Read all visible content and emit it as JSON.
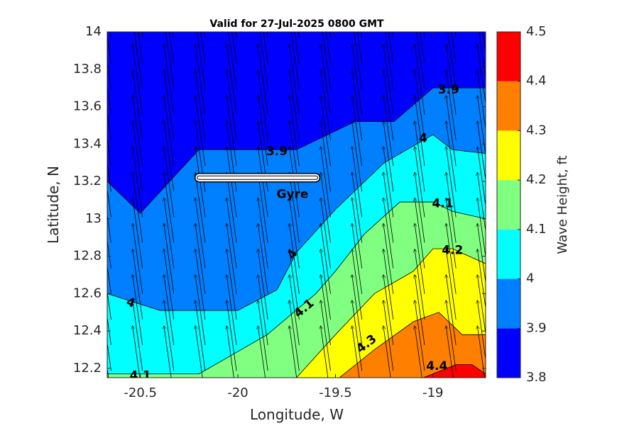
{
  "chart_data": {
    "type": "contourf",
    "title": "Valid for 27-Jul-2025 0800 GMT",
    "xlabel": "Longitude, W",
    "ylabel": "Latitude, N",
    "colorbar_label": "Wave Height, ft",
    "xlim": [
      -20.67,
      -18.73
    ],
    "ylim": [
      12.15,
      14.0
    ],
    "x_ticks": [
      -20.5,
      -20,
      -19.5,
      -19
    ],
    "x_tick_labels": [
      "-20.5",
      "-20",
      "-19.5",
      "-19"
    ],
    "y_ticks": [
      12.2,
      12.4,
      12.6,
      12.8,
      13.0,
      13.2,
      13.4,
      13.6,
      13.8,
      14.0
    ],
    "y_tick_labels": [
      "12.2",
      "12.4",
      "12.6",
      "12.8",
      "13",
      "13.2",
      "13.4",
      "13.6",
      "13.8",
      "14"
    ],
    "levels": [
      3.8,
      3.9,
      4.0,
      4.1,
      4.2,
      4.3,
      4.4,
      4.5
    ],
    "level_labels": [
      "3.8",
      "3.9",
      "4",
      "4.1",
      "4.2",
      "4.3",
      "4.4",
      "4.5"
    ],
    "band_colors": [
      "#0000ff",
      "#0080ff",
      "#00ffff",
      "#80ff80",
      "#ffff00",
      "#ff8000",
      "#ff0000"
    ],
    "contours": [
      {
        "level": 3.9,
        "points": [
          [
            -20.67,
            13.2
          ],
          [
            -20.5,
            13.03
          ],
          [
            -20.2,
            13.37
          ],
          [
            -19.7,
            13.37
          ],
          [
            -19.4,
            13.52
          ],
          [
            -19.2,
            13.52
          ],
          [
            -19.0,
            13.7
          ],
          [
            -18.73,
            13.7
          ]
        ]
      },
      {
        "level": 4.0,
        "points": [
          [
            -20.67,
            12.6
          ],
          [
            -20.4,
            12.51
          ],
          [
            -20.0,
            12.51
          ],
          [
            -19.8,
            12.62
          ],
          [
            -19.7,
            12.82
          ],
          [
            -19.5,
            13.05
          ],
          [
            -19.25,
            13.3
          ],
          [
            -19.0,
            13.45
          ],
          [
            -18.9,
            13.37
          ],
          [
            -18.73,
            13.35
          ]
        ]
      },
      {
        "level": 4.1,
        "points": [
          [
            -20.67,
            12.17
          ],
          [
            -20.2,
            12.17
          ],
          [
            -19.85,
            12.38
          ],
          [
            -19.6,
            12.6
          ],
          [
            -19.5,
            12.72
          ],
          [
            -19.35,
            12.92
          ],
          [
            -19.17,
            13.09
          ],
          [
            -19.0,
            13.09
          ],
          [
            -18.9,
            13.04
          ],
          [
            -18.73,
            13.0
          ]
        ]
      },
      {
        "level": 4.2,
        "points": [
          [
            -19.7,
            12.15
          ],
          [
            -19.5,
            12.38
          ],
          [
            -19.3,
            12.6
          ],
          [
            -19.1,
            12.72
          ],
          [
            -19.0,
            12.84
          ],
          [
            -18.9,
            12.84
          ],
          [
            -18.73,
            12.76
          ]
        ]
      },
      {
        "level": 4.3,
        "points": [
          [
            -19.48,
            12.15
          ],
          [
            -19.3,
            12.3
          ],
          [
            -19.1,
            12.45
          ],
          [
            -18.97,
            12.5
          ],
          [
            -18.85,
            12.38
          ],
          [
            -18.73,
            12.38
          ]
        ]
      },
      {
        "level": 4.4,
        "points": [
          [
            -19.05,
            12.15
          ],
          [
            -18.88,
            12.22
          ],
          [
            -18.8,
            12.22
          ],
          [
            -18.73,
            12.17
          ]
        ]
      }
    ],
    "contour_labels": [
      {
        "text": "3.9",
        "x": -19.8,
        "y": 13.36
      },
      {
        "text": "3.9",
        "x": -18.92,
        "y": 13.69
      },
      {
        "text": "4",
        "x": -19.05,
        "y": 13.43
      },
      {
        "text": "4",
        "x": -19.72,
        "y": 12.81,
        "rotate": -55
      },
      {
        "text": "4",
        "x": -20.55,
        "y": 12.55,
        "rotate": 20
      },
      {
        "text": "4.1",
        "x": -18.95,
        "y": 13.08
      },
      {
        "text": "4.1",
        "x": -19.66,
        "y": 12.52,
        "rotate": -40
      },
      {
        "text": "4.1",
        "x": -20.5,
        "y": 12.16
      },
      {
        "text": "4.2",
        "x": -18.9,
        "y": 12.83
      },
      {
        "text": "4.3",
        "x": -19.34,
        "y": 12.33,
        "rotate": -38
      },
      {
        "text": "4.4",
        "x": -18.98,
        "y": 12.21
      }
    ],
    "annotation": {
      "text": "Gyre",
      "x": -19.72,
      "y": 13.13,
      "marker": {
        "x_start": -20.22,
        "x_end": -19.58,
        "y": 13.22
      }
    },
    "wind_arrows": {
      "direction_deg_from_north": -8,
      "length_deg_lat": 0.38
    },
    "grid": false,
    "legend": "colorbar-right"
  }
}
